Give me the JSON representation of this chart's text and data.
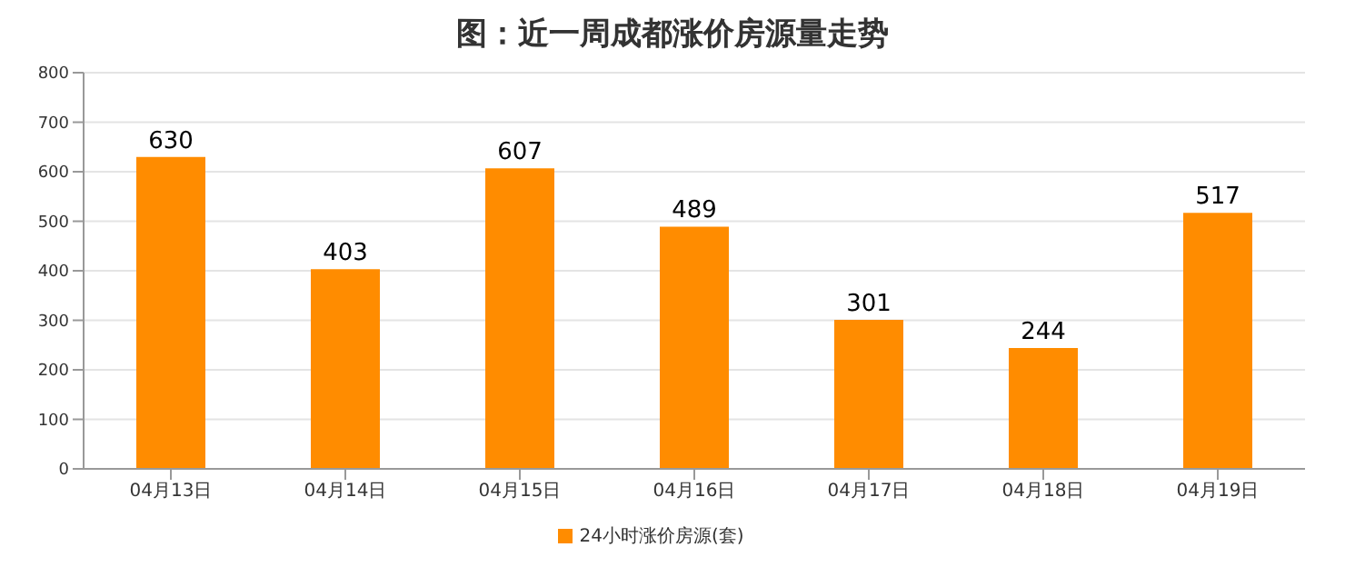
{
  "chart_data": {
    "type": "bar",
    "title": "图：近一周成都涨价房源量走势",
    "categories": [
      "04月13日",
      "04月14日",
      "04月15日",
      "04月16日",
      "04月17日",
      "04月18日",
      "04月19日"
    ],
    "series": [
      {
        "name": "24小时涨价房源(套)",
        "color": "#ff8c00",
        "values": [
          630,
          403,
          607,
          489,
          301,
          244,
          517
        ]
      }
    ],
    "ylim": [
      0,
      800
    ],
    "yticks": [
      0,
      100,
      200,
      300,
      400,
      500,
      600,
      700,
      800
    ],
    "grid": "y",
    "legend": "bottom",
    "data_labels": true
  }
}
